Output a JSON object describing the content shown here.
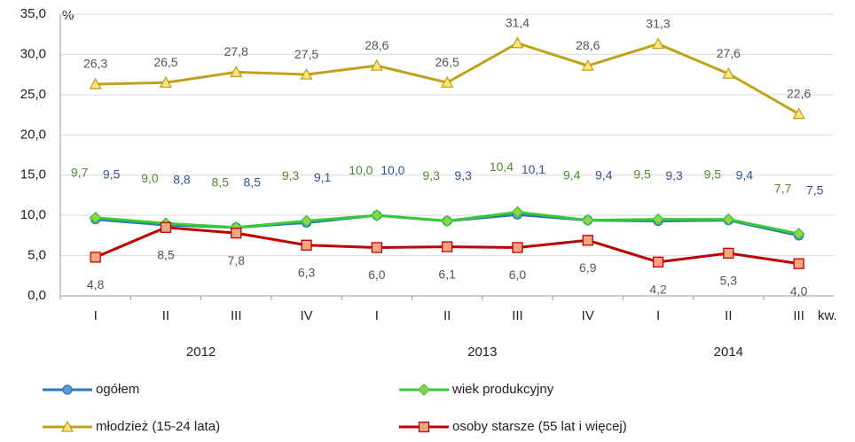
{
  "chart_data": {
    "type": "line",
    "y_unit": "%",
    "x_unit": "kw.",
    "categories": [
      "I",
      "II",
      "III",
      "IV",
      "I",
      "II",
      "III",
      "IV",
      "I",
      "II",
      "III"
    ],
    "groups": [
      "2012",
      "2013",
      "2014"
    ],
    "ylim": [
      0,
      35
    ],
    "yticks": [
      {
        "value": 0,
        "label": "0,0"
      },
      {
        "value": 5,
        "label": "5,0"
      },
      {
        "value": 10,
        "label": "10,0"
      },
      {
        "value": 15,
        "label": "15,0"
      },
      {
        "value": 20,
        "label": "20,0"
      },
      {
        "value": 25,
        "label": "25,0"
      },
      {
        "value": 30,
        "label": "30,0"
      },
      {
        "value": 35,
        "label": "35,0"
      }
    ],
    "grid": true,
    "series": [
      {
        "name": "ogółem",
        "color": "#2e75b6",
        "marker": "circle",
        "marker_fill": "#5b9bd5",
        "label_color": "#2f5597",
        "label_position": "above-right",
        "values": [
          9.5,
          8.8,
          8.5,
          9.1,
          10.0,
          9.3,
          10.1,
          9.4,
          9.3,
          9.4,
          7.5
        ],
        "value_labels": [
          "9,5",
          "8,8",
          "8,5",
          "9,1",
          "10,0",
          "9,3",
          "10,1",
          "9,4",
          "9,3",
          "9,4",
          "7,5"
        ]
      },
      {
        "name": "wiek produkcyjny",
        "color": "#33cc33",
        "marker": "diamond",
        "marker_fill": "#92d050",
        "label_color": "#4e8a2e",
        "label_position": "above-left",
        "values": [
          9.7,
          9.0,
          8.5,
          9.3,
          10.0,
          9.3,
          10.4,
          9.4,
          9.5,
          9.5,
          7.7
        ],
        "value_labels": [
          "9,7",
          "9,0",
          "8,5",
          "9,3",
          "10,0",
          "9,3",
          "10,4",
          "9,4",
          "9,5",
          "9,5",
          "7,7"
        ]
      },
      {
        "name": "młodzież (15-24 lata)",
        "color": "#bfa21a",
        "marker": "triangle",
        "marker_fill": "#ffe680",
        "label_color": "#555555",
        "label_position": "above",
        "values": [
          26.3,
          26.5,
          27.8,
          27.5,
          28.6,
          26.5,
          31.4,
          28.6,
          31.3,
          27.6,
          22.6
        ],
        "value_labels": [
          "26,3",
          "26,5",
          "27,8",
          "27,5",
          "28,6",
          "26,5",
          "31,4",
          "28,6",
          "31,3",
          "27,6",
          "22,6"
        ]
      },
      {
        "name": "osoby starsze (55 lat i więcej)",
        "color": "#c00000",
        "marker": "square",
        "marker_fill": "#f4a582",
        "label_color": "#555555",
        "label_position": "below",
        "values": [
          4.8,
          8.5,
          7.8,
          6.3,
          6.0,
          6.1,
          6.0,
          6.9,
          4.2,
          5.3,
          4.0
        ],
        "value_labels": [
          "4,8",
          "8,5",
          "7,8",
          "6,3",
          "6,0",
          "6,1",
          "6,0",
          "6,9",
          "4,2",
          "5,3",
          "4,0"
        ]
      }
    ]
  }
}
